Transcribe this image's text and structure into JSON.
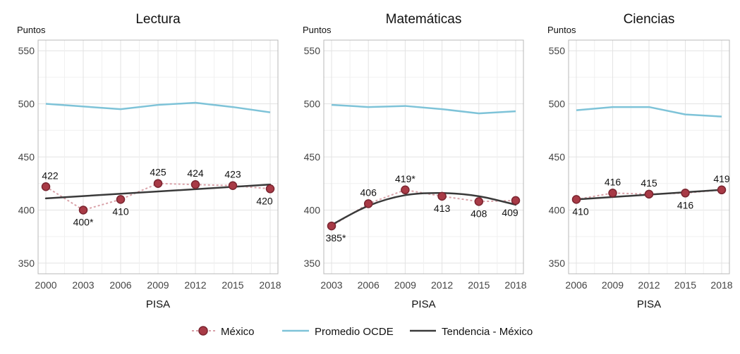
{
  "chart_data": [
    {
      "type": "line",
      "title": "Lectura",
      "ylabel": "Puntos",
      "xlabel": "PISA",
      "ylim": [
        340,
        560
      ],
      "yticks": [
        350,
        400,
        450,
        500,
        550
      ],
      "x": [
        2000,
        2003,
        2006,
        2009,
        2012,
        2015,
        2018
      ],
      "mexico": [
        422,
        400,
        410,
        425,
        424,
        423,
        420
      ],
      "mexico_labels": [
        "422",
        "400*",
        "410",
        "425",
        "424",
        "423",
        "420"
      ],
      "label_pos": [
        "above",
        "below",
        "below",
        "above",
        "above",
        "above",
        "below"
      ],
      "ocde_x": [
        2000,
        2006,
        2009,
        2012,
        2015,
        2018
      ],
      "ocde": [
        500,
        495,
        499,
        501,
        497,
        492
      ],
      "trend_x": [
        2000,
        2018
      ],
      "trend": [
        411,
        424
      ]
    },
    {
      "type": "line",
      "title": "Matemáticas",
      "ylabel": "Puntos",
      "xlabel": "PISA",
      "ylim": [
        340,
        560
      ],
      "yticks": [
        350,
        400,
        450,
        500,
        550
      ],
      "x": [
        2003,
        2006,
        2009,
        2012,
        2015,
        2018
      ],
      "mexico": [
        385,
        406,
        419,
        413,
        408,
        409
      ],
      "mexico_labels": [
        "385*",
        "406",
        "419*",
        "413",
        "408",
        "409"
      ],
      "label_pos": [
        "below",
        "above",
        "above",
        "below",
        "below",
        "below"
      ],
      "ocde_x": [
        2003,
        2006,
        2009,
        2012,
        2015,
        2018
      ],
      "ocde": [
        499,
        497,
        498,
        495,
        491,
        493
      ],
      "trend_x": [
        2003,
        2006,
        2009,
        2012,
        2015,
        2018
      ],
      "trend": [
        386,
        404,
        414,
        416,
        413,
        405
      ]
    },
    {
      "type": "line",
      "title": "Ciencias",
      "ylabel": "Puntos",
      "xlabel": "PISA",
      "ylim": [
        340,
        560
      ],
      "yticks": [
        350,
        400,
        450,
        500,
        550
      ],
      "x": [
        2006,
        2009,
        2012,
        2015,
        2018
      ],
      "mexico": [
        410,
        416,
        415,
        416,
        419
      ],
      "mexico_labels": [
        "410",
        "416",
        "415",
        "416",
        "419"
      ],
      "label_pos": [
        "below",
        "above",
        "above",
        "below",
        "above"
      ],
      "ocde_x": [
        2006,
        2009,
        2012,
        2015,
        2018
      ],
      "ocde": [
        494,
        497,
        497,
        490,
        488
      ],
      "trend_x": [
        2006,
        2018
      ],
      "trend": [
        410,
        419
      ]
    }
  ],
  "legend": {
    "mexico": "México",
    "ocde": "Promedio OCDE",
    "trend": "Tendencia - México"
  },
  "colors": {
    "mexico": "#a83a46",
    "mexico_line": "#d9a2a9",
    "ocde": "#7ec3d8",
    "trend": "#3a3a3a",
    "grid": "#e3e3e3",
    "border": "#b8b8b8"
  }
}
